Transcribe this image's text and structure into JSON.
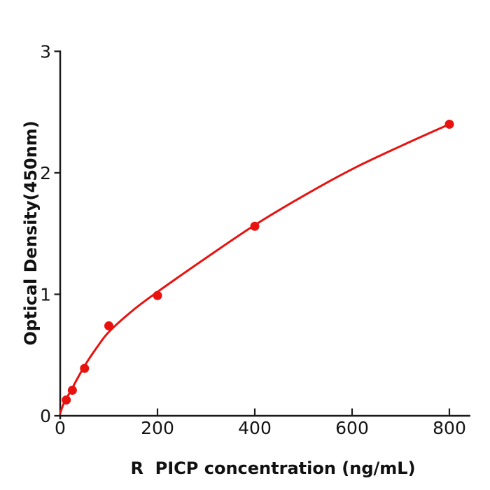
{
  "figure": {
    "background": "#ffffff"
  },
  "chart_data": {
    "type": "scatter",
    "title": "",
    "xlabel": "R  PICP concentration (ng/mL)",
    "ylabel": "Optical Density(450nm)",
    "x_ticks": [
      0,
      200,
      400,
      600,
      800
    ],
    "y_ticks": [
      0,
      1,
      2,
      3
    ],
    "xlim": [
      0,
      843
    ],
    "ylim": [
      0,
      3
    ],
    "grid": false,
    "legend": "none",
    "axis_color": "#1a1a1a",
    "point_color": "#e8120f",
    "curve_color": "#e8120f",
    "series": [
      {
        "name": "standard-points",
        "type": "scatter",
        "color": "#e8120f",
        "points": [
          {
            "x": 12.5,
            "y": 0.13
          },
          {
            "x": 25,
            "y": 0.21
          },
          {
            "x": 50,
            "y": 0.39
          },
          {
            "x": 100,
            "y": 0.74
          },
          {
            "x": 200,
            "y": 0.99
          },
          {
            "x": 400,
            "y": 1.56
          },
          {
            "x": 800,
            "y": 2.4
          }
        ]
      },
      {
        "name": "fitted-curve",
        "type": "line",
        "color": "#e8120f",
        "points": [
          {
            "x": 0,
            "y": 0.02
          },
          {
            "x": 6,
            "y": 0.09
          },
          {
            "x": 12.5,
            "y": 0.14
          },
          {
            "x": 25,
            "y": 0.23
          },
          {
            "x": 50,
            "y": 0.41
          },
          {
            "x": 75,
            "y": 0.56
          },
          {
            "x": 100,
            "y": 0.69
          },
          {
            "x": 150,
            "y": 0.87
          },
          {
            "x": 200,
            "y": 1.02
          },
          {
            "x": 300,
            "y": 1.3
          },
          {
            "x": 400,
            "y": 1.57
          },
          {
            "x": 500,
            "y": 1.81
          },
          {
            "x": 600,
            "y": 2.03
          },
          {
            "x": 700,
            "y": 2.22
          },
          {
            "x": 800,
            "y": 2.4
          }
        ]
      }
    ]
  }
}
